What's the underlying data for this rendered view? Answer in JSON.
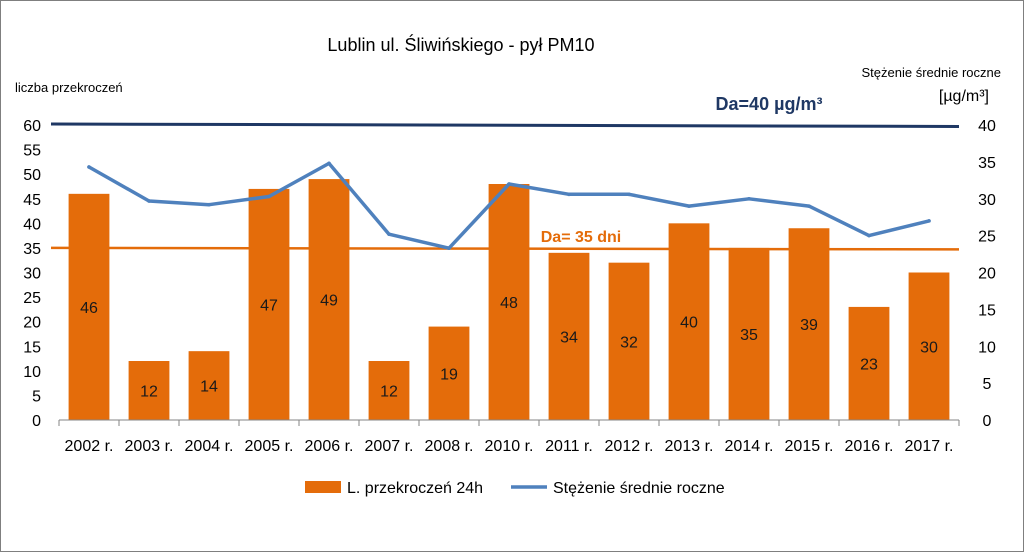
{
  "chart_data": {
    "type": "bar",
    "title": "Lublin ul. Śliwińskiego  - pył PM10",
    "ylabel_left": "liczba przekroczeń",
    "ylabel_right": "Stężenie średnie roczne",
    "ylabel_right_unit": "[µg/m³]",
    "ylim_left": [
      0,
      60
    ],
    "yticks_left": [
      "0",
      "5",
      "10",
      "15",
      "20",
      "25",
      "30",
      "35",
      "40",
      "45",
      "50",
      "55",
      "60"
    ],
    "ylim_right": [
      0,
      40
    ],
    "yticks_right": [
      "0",
      "5",
      "10",
      "15",
      "20",
      "25",
      "30",
      "35",
      "40"
    ],
    "categories": [
      "2002 r.",
      "2003 r.",
      "2004 r.",
      "2005 r.",
      "2006 r.",
      "2007 r.",
      "2008 r.",
      "2010 r.",
      "2011 r.",
      "2012 r.",
      "2013 r.",
      "2014 r.",
      "2015 r.",
      "2016 r.",
      "2017 r."
    ],
    "series": [
      {
        "name": "L. przekroczeń 24h",
        "type": "bar",
        "axis": "left",
        "color": "#e46c0a",
        "values": [
          46,
          12,
          14,
          47,
          49,
          12,
          19,
          48,
          34,
          32,
          40,
          35,
          39,
          23,
          30
        ],
        "labels": [
          "46",
          "12",
          "14",
          "47",
          "49",
          "12",
          "19",
          "48",
          "34",
          "32",
          "40",
          "35",
          "39",
          "23",
          "30"
        ]
      },
      {
        "name": "Stężenie średnie roczne",
        "type": "line",
        "axis": "right",
        "color": "#4f81bd",
        "values": [
          34.3,
          29.7,
          29.2,
          30.3,
          34.8,
          25.2,
          23.3,
          32.0,
          30.6,
          30.6,
          29.0,
          30.0,
          29.0,
          25.0,
          27.0
        ]
      }
    ],
    "reference_lines": [
      {
        "label": "Da=40 µg/m³",
        "axis": "right",
        "value": 40,
        "color": "#1f3864"
      },
      {
        "label": "Da= 35 dni",
        "axis": "left",
        "value": 35,
        "color": "#e46c0a"
      }
    ],
    "legend_position": "bottom",
    "grid": false
  }
}
